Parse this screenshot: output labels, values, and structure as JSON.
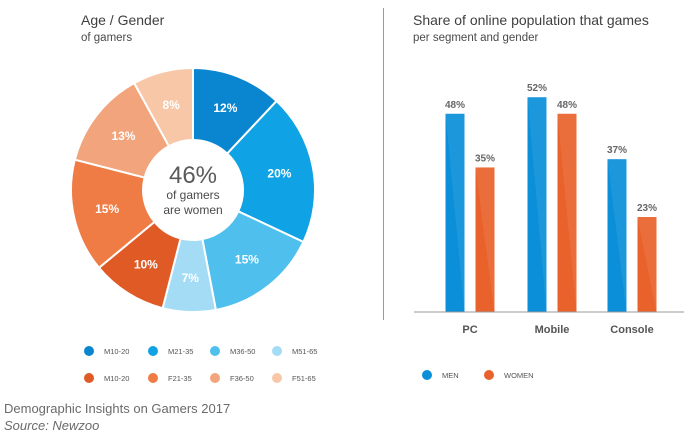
{
  "donut": {
    "title": "Age / Gender",
    "subtitle": "of gamers",
    "center_value": "46%",
    "center_line1": "of gamers",
    "center_line2": "are women"
  },
  "legend_left": [
    {
      "label": "M10-20",
      "color": "#0a86d0"
    },
    {
      "label": "M21-35",
      "color": "#0fa2e4"
    },
    {
      "label": "M36-50",
      "color": "#4fc0ee"
    },
    {
      "label": "M51-65",
      "color": "#a4dcf5"
    },
    {
      "label": "M10-20",
      "color": "#e05a26"
    },
    {
      "label": "F21-35",
      "color": "#ef7b45"
    },
    {
      "label": "F36-50",
      "color": "#f2a57d"
    },
    {
      "label": "F51-65",
      "color": "#f7c7a7"
    }
  ],
  "bars": {
    "title": "Share of online population that games",
    "subtitle": "per segment and gender"
  },
  "legend_right": [
    {
      "label": "MEN",
      "color": "#0a8fd8"
    },
    {
      "label": "WOMEN",
      "color": "#e9622b"
    }
  ],
  "footer": {
    "line1": "Demographic Insights on Gamers 2017",
    "line2": "Source: Newzoo"
  },
  "chart_data": [
    {
      "type": "pie",
      "title": "Age / Gender",
      "subtitle": "of gamers",
      "categories": [
        "M10-20",
        "M21-35",
        "M36-50",
        "M51-65",
        "F51-65",
        "F36-50",
        "F21-35",
        "M10-20"
      ],
      "values": [
        12,
        20,
        15,
        7,
        8,
        13,
        15,
        10
      ],
      "slices": [
        {
          "label": "M10-20",
          "value": 12,
          "text": "12%",
          "color": "#0a86d0"
        },
        {
          "label": "M21-35",
          "value": 20,
          "text": "20%",
          "color": "#0fa2e4"
        },
        {
          "label": "M36-50",
          "value": 15,
          "text": "15%",
          "color": "#4fc0ee"
        },
        {
          "label": "M51-65",
          "value": 7,
          "text": "7%",
          "color": "#a4dcf5"
        },
        {
          "label": "M10-20",
          "value": 10,
          "text": "10%",
          "color": "#e05a26"
        },
        {
          "label": "F21-35",
          "value": 15,
          "text": "15%",
          "color": "#ef7b45"
        },
        {
          "label": "F36-50",
          "value": 13,
          "text": "13%",
          "color": "#f2a57d"
        },
        {
          "label": "F51-65",
          "value": 8,
          "text": "8%",
          "color": "#f7c7a7"
        }
      ],
      "center_text": "46%"
    },
    {
      "type": "bar",
      "title": "Share of online population that games",
      "subtitle": "per segment and gender",
      "categories": [
        "PC",
        "Mobile",
        "Console"
      ],
      "series": [
        {
          "name": "MEN",
          "values": [
            48,
            52,
            37
          ],
          "labels": [
            "48%",
            "52%",
            "37%"
          ],
          "color": "#0a8fd8"
        },
        {
          "name": "WOMEN",
          "values": [
            35,
            48,
            23
          ],
          "labels": [
            "35%",
            "48%",
            "23%"
          ],
          "color": "#e9622b"
        }
      ],
      "ylim": [
        0,
        55
      ],
      "grid": false,
      "legend": "bottom-left"
    }
  ]
}
